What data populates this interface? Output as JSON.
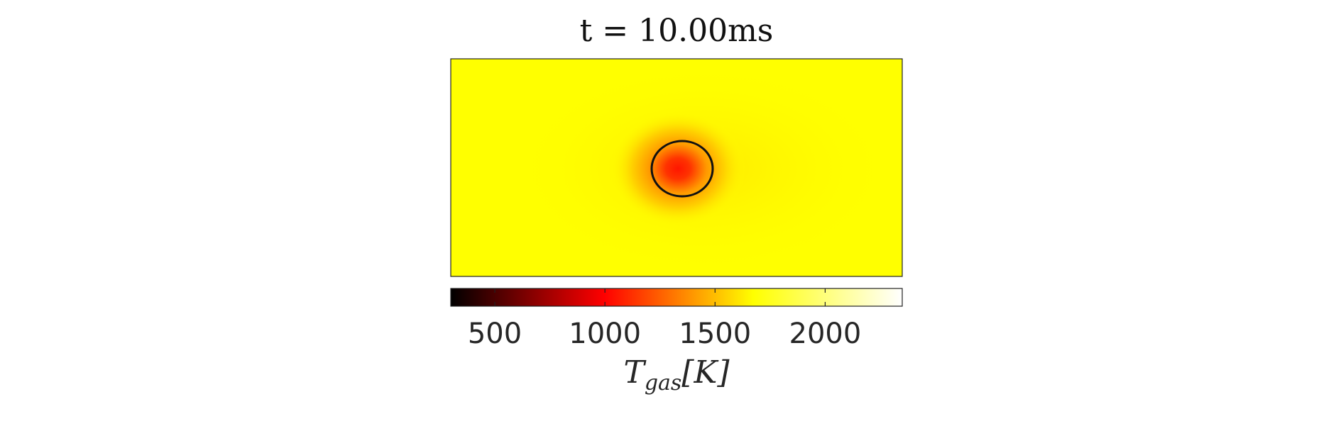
{
  "chart_data": {
    "type": "heatmap",
    "title": "t = 10.00ms",
    "colormap": "hot",
    "colorbar": {
      "orientation": "horizontal",
      "placement": "bottom",
      "range": [
        300,
        2350
      ],
      "ticks": [
        500,
        1000,
        1500,
        2000
      ],
      "tick_labels": [
        "500",
        "1000",
        "1500",
        "2000"
      ],
      "label": "T_gas[K]",
      "label_main": "T",
      "label_sub": "gas",
      "label_rest": "[K]"
    },
    "field": {
      "background_value": 2040,
      "hotspot_center_value": 1220,
      "hotspot_center": [
        0.5,
        0.5
      ],
      "contour_level_description": "circular contour around hotspot"
    },
    "axes_visible": false,
    "grid": false,
    "colors": {
      "hot_black": "#000000",
      "hot_red": "#ff0000",
      "hot_yellow": "#ffff00",
      "hot_white": "#ffffff",
      "contour": "#111111"
    }
  }
}
